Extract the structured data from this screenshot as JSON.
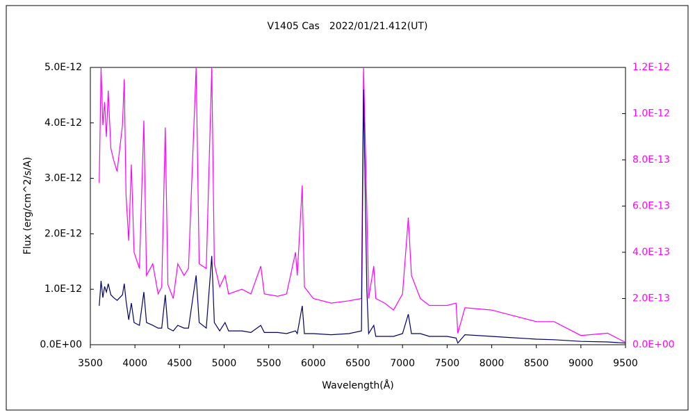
{
  "chart_data": {
    "type": "line",
    "title": "V1405 Cas　2022/01/21.412(UT)",
    "x_label": "Wavelength(Å)",
    "y_label": "Flux (erg/cm^2/s/A)",
    "x": [
      3600,
      3620,
      3640,
      3660,
      3680,
      3700,
      3730,
      3760,
      3800,
      3860,
      3880,
      3900,
      3930,
      3960,
      3990,
      4050,
      4100,
      4130,
      4200,
      4260,
      4300,
      4340,
      4370,
      4430,
      4480,
      4550,
      4600,
      4686,
      4720,
      4800,
      4861,
      4890,
      4950,
      5010,
      5050,
      5200,
      5300,
      5411,
      5450,
      5600,
      5700,
      5800,
      5820,
      5876,
      5900,
      6000,
      6200,
      6400,
      6540,
      6563,
      6600,
      6620,
      6678,
      6700,
      6800,
      6900,
      7000,
      7065,
      7100,
      7200,
      7300,
      7500,
      7600,
      7620,
      7700,
      8000,
      8200,
      8500,
      8700,
      9000,
      9300,
      9500
    ],
    "series": [
      {
        "color": "#000066",
        "axis": "y",
        "values": [
          7e-13,
          1.15e-12,
          8.5e-13,
          1.05e-12,
          9.5e-13,
          1.1e-12,
          9e-13,
          8.5e-13,
          8e-13,
          9e-13,
          1.1e-12,
          8e-13,
          4.5e-13,
          7.5e-13,
          4e-13,
          3.5e-13,
          9.5e-13,
          4e-13,
          3.5e-13,
          3e-13,
          3e-13,
          9e-13,
          3e-13,
          2.5e-13,
          3.5e-13,
          3e-13,
          3e-13,
          1.25e-12,
          4e-13,
          3e-13,
          1.6e-12,
          4e-13,
          2.5e-13,
          4e-13,
          2.5e-13,
          2.5e-13,
          2.2e-13,
          3.5e-13,
          2.2e-13,
          2.2e-13,
          2e-13,
          2.5e-13,
          2e-13,
          7e-13,
          2e-13,
          2e-13,
          1.8e-13,
          2e-13,
          2.5e-13,
          4.6e-12,
          1e-12,
          2e-13,
          3.5e-13,
          1.5e-13,
          1.5e-13,
          1.5e-13,
          2e-13,
          5.5e-13,
          2e-13,
          2e-13,
          1.5e-13,
          1.5e-13,
          1.2e-13,
          3e-14,
          1.8e-13,
          1.5e-13,
          1.3e-13,
          1e-13,
          9e-14,
          6e-14,
          5e-14,
          3e-14
        ]
      },
      {
        "color": "#ff00ff",
        "axis": "y2",
        "values": [
          7e-13,
          1.2e-12,
          9.5e-13,
          1.05e-12,
          9e-13,
          1.1e-12,
          8.5e-13,
          8e-13,
          7.5e-13,
          9.5e-13,
          1.15e-12,
          6.5e-13,
          4.5e-13,
          7.8e-13,
          4e-13,
          3.3e-13,
          9.7e-13,
          3e-13,
          3.5e-13,
          2.2e-13,
          2.5e-13,
          9.4e-13,
          2.6e-13,
          2e-13,
          3.5e-13,
          3e-13,
          3.3e-13,
          1.2e-12,
          3.5e-13,
          3.3e-13,
          1.2e-12,
          3.5e-13,
          2.5e-13,
          3e-13,
          2.2e-13,
          2.4e-13,
          2.2e-13,
          3.4e-13,
          2.2e-13,
          2.1e-13,
          2.2e-13,
          4e-13,
          3e-13,
          6.9e-13,
          2.5e-13,
          2e-13,
          1.8e-13,
          1.9e-13,
          2e-13,
          1.2e-12,
          6e-13,
          2e-13,
          3.4e-13,
          2e-13,
          1.8e-13,
          1.5e-13,
          2.2e-13,
          5.5e-13,
          3e-13,
          2e-13,
          1.7e-13,
          1.7e-13,
          1.8e-13,
          5e-14,
          1.6e-13,
          1.5e-13,
          1.3e-13,
          1e-13,
          1e-13,
          4e-14,
          5e-14,
          1e-14
        ]
      }
    ],
    "xlim": [
      3500,
      9500
    ],
    "xticks": [
      3500,
      4000,
      4500,
      5000,
      5500,
      6000,
      6500,
      7000,
      7500,
      8000,
      8500,
      9000,
      9500
    ],
    "ylim": [
      0,
      5e-12
    ],
    "yticks": [
      {
        "value": 0,
        "label": "0.0E+00"
      },
      {
        "value": 1e-12,
        "label": "1.0E-12"
      },
      {
        "value": 2e-12,
        "label": "2.0E-12"
      },
      {
        "value": 3e-12,
        "label": "3.0E-12"
      },
      {
        "value": 4e-12,
        "label": "4.0E-12"
      },
      {
        "value": 5e-12,
        "label": "5.0E-12"
      }
    ],
    "y2lim": [
      0,
      1.2e-12
    ],
    "y2ticks": [
      {
        "value": 0,
        "label": "0.0E+00"
      },
      {
        "value": 2e-13,
        "label": "2.0E-13"
      },
      {
        "value": 4e-13,
        "label": "4.0E-13"
      },
      {
        "value": 6e-13,
        "label": "6.0E-13"
      },
      {
        "value": 8e-13,
        "label": "8.0E-13"
      },
      {
        "value": 1e-12,
        "label": "1.0E-12"
      },
      {
        "value": 1.2e-12,
        "label": "1.2E-12"
      }
    ],
    "grid": false
  }
}
